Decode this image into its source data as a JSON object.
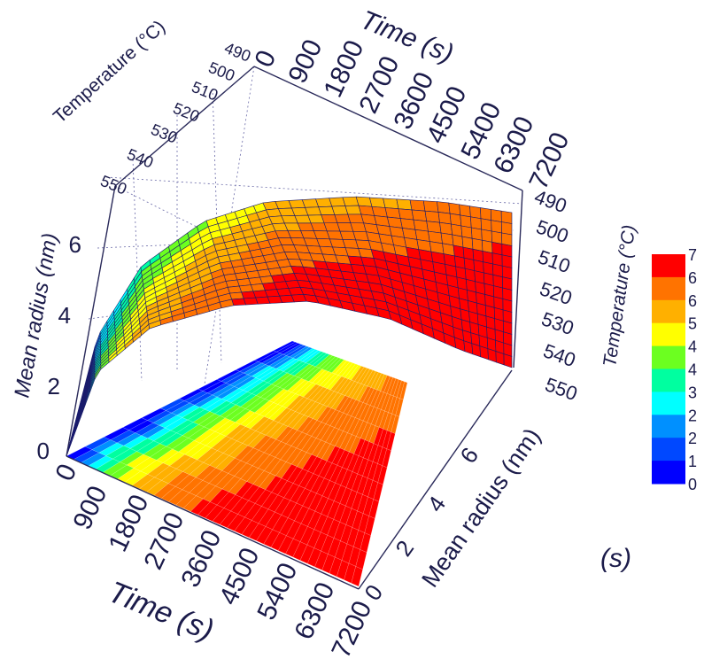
{
  "chart_data": {
    "type": "surface3d",
    "x_axis": {
      "title": "Time (s)",
      "ticks": [
        "0",
        "900",
        "1800",
        "2700",
        "3600",
        "4500",
        "5400",
        "6300",
        "7200"
      ],
      "range": [
        0,
        7200
      ]
    },
    "y_axis": {
      "title": "Temperature (°C)",
      "ticks": [
        "490",
        "500",
        "510",
        "520",
        "530",
        "540",
        "550"
      ],
      "range": [
        490,
        550
      ]
    },
    "z_axis": {
      "title": "Mean radius (nm)",
      "ticks": [
        "0",
        "2",
        "4",
        "6"
      ],
      "range": [
        0,
        7
      ]
    },
    "floor_time_title": "Time (s)",
    "floor_radius_title": "Mean radius (nm)",
    "stray_label": "(s)",
    "colorbar": {
      "labels": [
        "7",
        "6",
        "6",
        "5",
        "4",
        "4",
        "3",
        "2",
        "2",
        "1",
        "0"
      ],
      "colors": [
        "#ff0000",
        "#ff7300",
        "#ffb000",
        "#ffff00",
        "#6cff20",
        "#00ffa0",
        "#00ffff",
        "#0090ff",
        "#0048ff",
        "#0000ff"
      ]
    },
    "description_values": {
      "max_radius_nm": 7,
      "min_radius_nm": 0
    }
  }
}
